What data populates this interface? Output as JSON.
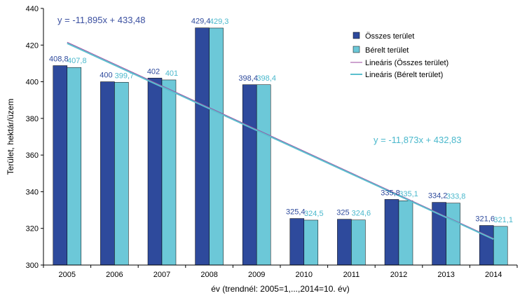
{
  "chart_data": {
    "type": "bar",
    "title": "",
    "xlabel": "év (trendnél: 2005=1,...,2014=10. év)",
    "ylabel": "Terület, hektár/üzem",
    "ylim": [
      300,
      440
    ],
    "yticks": [
      300,
      320,
      340,
      360,
      380,
      400,
      420,
      440
    ],
    "categories": [
      "2005",
      "2006",
      "2007",
      "2008",
      "2009",
      "2010",
      "2011",
      "2012",
      "2013",
      "2014"
    ],
    "series": [
      {
        "name": "Összes terület",
        "color": "#2e4a9c",
        "values": [
          408.8,
          400,
          402,
          429.4,
          398.4,
          325.4,
          325,
          335.8,
          334.2,
          321.6
        ],
        "labels": [
          "408,8",
          "400",
          "402",
          "429,4",
          "398,4",
          "325,4",
          "325",
          "335,8",
          "334,2",
          "321,6"
        ]
      },
      {
        "name": "Bérelt terület",
        "color": "#6cc8d8",
        "values": [
          407.8,
          399.7,
          401,
          429.3,
          398.4,
          324.5,
          324.6,
          335.1,
          333.8,
          321.1
        ],
        "labels": [
          "407,8",
          "399,7",
          "401",
          "429,3",
          "398,4",
          "324,5",
          "324,6",
          "335,1",
          "333,8",
          "321,1"
        ]
      }
    ],
    "trendlines": [
      {
        "name": "Lineáris (Összes terület)",
        "color": "#9c4aa0",
        "slope": -11.895,
        "intercept": 433.48,
        "equation": "y = -11,895x + 433,48"
      },
      {
        "name": "Lineáris (Bérelt terület)",
        "color": "#5bbfce",
        "slope": -11.873,
        "intercept": 432.83,
        "equation": "y = -11,873x + 432,83"
      }
    ],
    "legend_position": "top-right",
    "grid": false
  }
}
